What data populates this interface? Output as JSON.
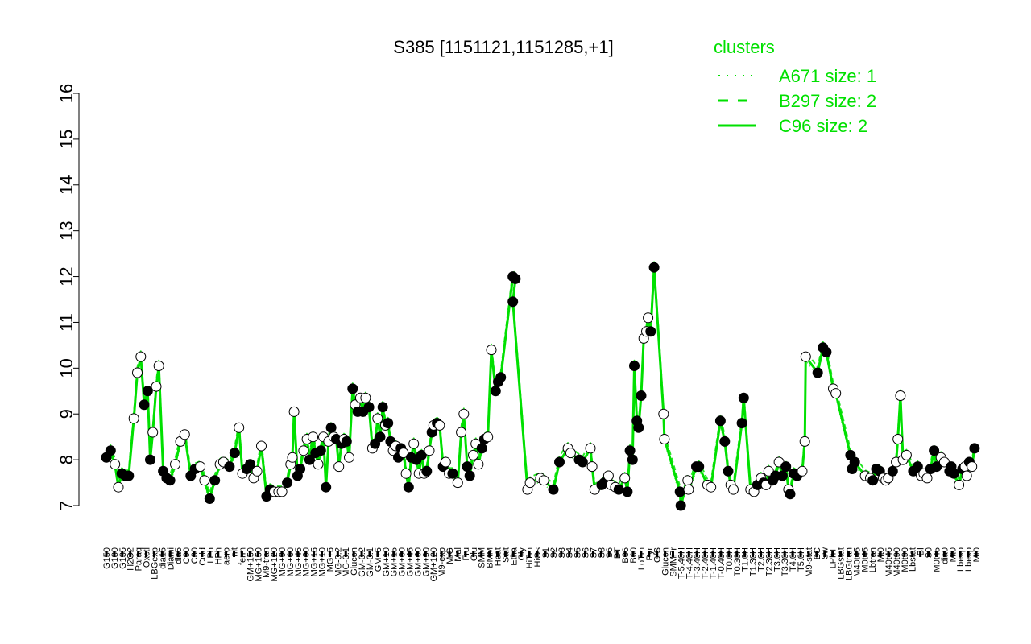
{
  "chart_data": {
    "type": "line",
    "title": "S385 [1151121,1151285,+1]",
    "xlabel": "",
    "ylabel": "",
    "ylim": [
      7,
      16
    ],
    "yticks": [
      7,
      8,
      9,
      10,
      11,
      12,
      13,
      14,
      15,
      16
    ],
    "legend": {
      "title": "clusters",
      "placement": "top-right",
      "entries": [
        {
          "label": "A671 size: 1",
          "style": "dotted"
        },
        {
          "label": "B297 size: 2",
          "style": "dashed"
        },
        {
          "label": "C96 size: 2",
          "style": "solid"
        }
      ]
    },
    "line_color": "#00e000",
    "point_fill_dark": "#000000",
    "point_fill_light": "#ffffff",
    "x_tick_labels": [
      "G150",
      "G180",
      "G135",
      "H2O2",
      "Paraq",
      "Oxctl",
      "LBGexp",
      "dia15",
      "Diami",
      "dia5",
      "C90",
      "C30",
      "Cold",
      "LPh",
      "HPh",
      "aero",
      "nit",
      "ferm",
      "GM+150",
      "MG+150",
      "M9-tran",
      "MG+120",
      "MG+90",
      "MG+60",
      "MG+45",
      "MG+30",
      "MG+15",
      "MG+10",
      "MG+5",
      "MG-0.2",
      "MG-0.1",
      "Glucon",
      "GM-0.2",
      "GM-0.1",
      "GM+5",
      "GM+10",
      "GM+15",
      "GM+30",
      "GM+45",
      "GM+60",
      "GM+90",
      "GM+120",
      "M9-exp",
      "M/G",
      "Mal",
      "Fru",
      "Glu",
      "SMM",
      "BMM",
      "Heat",
      "Salt",
      "Etha",
      "Gly",
      "HiTm",
      "HiOs",
      "S1",
      "S2",
      "S3",
      "S4",
      "S5",
      "S6",
      "S7",
      "S8",
      "S6",
      "BT",
      "B36",
      "B60",
      "LoTm",
      "Pyr",
      "G/S",
      "Glucon",
      "SMMPr",
      "T-5.40H",
      "T-4.40H",
      "T-3.40H",
      "T-2.40H",
      "T-1.40H",
      "T-0.40H",
      "T0.0H",
      "T0.30H",
      "T1.0H",
      "T1.30H",
      "T2.0H",
      "T2.30H",
      "T3.0H",
      "T3.30H",
      "T4.0H",
      "T5.0H",
      "M9-stat",
      "BC",
      "Sw",
      "LPhT",
      "LBGstat",
      "LBGtran",
      "M40t45",
      "M0t45",
      "Lbtran",
      "Mt0",
      "M40t45",
      "M40t90",
      "M0t90",
      "Lbstat",
      "BI",
      "S0",
      "M0t45",
      "dia0",
      "Mt0",
      "Lbexp",
      "Lbexp",
      "Mt0"
    ],
    "points": [
      {
        "x": 1,
        "y": 8.05,
        "f": 1
      },
      {
        "x": 1.5,
        "y": 8.2,
        "f": 1
      },
      {
        "x": 2,
        "y": 7.9,
        "f": 0
      },
      {
        "x": 2.4,
        "y": 7.4,
        "f": 0
      },
      {
        "x": 2.8,
        "y": 7.7,
        "f": 1
      },
      {
        "x": 3.2,
        "y": 7.65,
        "f": 1
      },
      {
        "x": 3.6,
        "y": 7.65,
        "f": 1
      },
      {
        "x": 4.2,
        "y": 8.9,
        "f": 0
      },
      {
        "x": 4.6,
        "y": 9.9,
        "f": 0
      },
      {
        "x": 5,
        "y": 10.25,
        "f": 0
      },
      {
        "x": 5.4,
        "y": 9.2,
        "f": 1
      },
      {
        "x": 5.8,
        "y": 9.5,
        "f": 1
      },
      {
        "x": 6.1,
        "y": 8.0,
        "f": 1
      },
      {
        "x": 6.4,
        "y": 8.6,
        "f": 0
      },
      {
        "x": 6.8,
        "y": 9.6,
        "f": 0
      },
      {
        "x": 7.1,
        "y": 10.05,
        "f": 0
      },
      {
        "x": 7.6,
        "y": 7.75,
        "f": 1
      },
      {
        "x": 8.0,
        "y": 7.6,
        "f": 1
      },
      {
        "x": 8.4,
        "y": 7.55,
        "f": 1
      },
      {
        "x": 9.0,
        "y": 7.9,
        "f": 0
      },
      {
        "x": 9.6,
        "y": 8.4,
        "f": 0
      },
      {
        "x": 10.1,
        "y": 8.55,
        "f": 0
      },
      {
        "x": 10.8,
        "y": 7.65,
        "f": 1
      },
      {
        "x": 11.3,
        "y": 7.8,
        "f": 1
      },
      {
        "x": 11.9,
        "y": 7.85,
        "f": 0
      },
      {
        "x": 12.4,
        "y": 7.55,
        "f": 0
      },
      {
        "x": 13.0,
        "y": 7.15,
        "f": 1
      },
      {
        "x": 13.6,
        "y": 7.55,
        "f": 1
      },
      {
        "x": 14.2,
        "y": 7.9,
        "f": 0
      },
      {
        "x": 14.6,
        "y": 7.95,
        "f": 0
      },
      {
        "x": 15.3,
        "y": 7.85,
        "f": 1
      },
      {
        "x": 15.9,
        "y": 8.15,
        "f": 1
      },
      {
        "x": 16.4,
        "y": 8.7,
        "f": 0
      },
      {
        "x": 16.8,
        "y": 7.7,
        "f": 0
      },
      {
        "x": 17.3,
        "y": 7.8,
        "f": 1
      },
      {
        "x": 17.7,
        "y": 7.9,
        "f": 1
      },
      {
        "x": 18.1,
        "y": 7.6,
        "f": 0
      },
      {
        "x": 18.5,
        "y": 7.75,
        "f": 0
      },
      {
        "x": 19.0,
        "y": 8.3,
        "f": 0
      },
      {
        "x": 19.6,
        "y": 7.2,
        "f": 1
      },
      {
        "x": 20.0,
        "y": 7.35,
        "f": 1
      },
      {
        "x": 20.5,
        "y": 7.3,
        "f": 0
      },
      {
        "x": 21.0,
        "y": 7.3,
        "f": 0
      },
      {
        "x": 21.4,
        "y": 7.3,
        "f": 0
      },
      {
        "x": 22.0,
        "y": 7.5,
        "f": 1
      },
      {
        "x": 22.4,
        "y": 7.9,
        "f": 0
      },
      {
        "x": 22.6,
        "y": 8.05,
        "f": 0
      },
      {
        "x": 22.8,
        "y": 9.05,
        "f": 0
      },
      {
        "x": 23.2,
        "y": 7.65,
        "f": 1
      },
      {
        "x": 23.5,
        "y": 7.8,
        "f": 1
      },
      {
        "x": 23.9,
        "y": 8.2,
        "f": 0
      },
      {
        "x": 24.3,
        "y": 8.45,
        "f": 0
      },
      {
        "x": 24.6,
        "y": 8.0,
        "f": 1
      },
      {
        "x": 25.0,
        "y": 8.5,
        "f": 0
      },
      {
        "x": 25.3,
        "y": 8.15,
        "f": 1
      },
      {
        "x": 25.6,
        "y": 7.9,
        "f": 0
      },
      {
        "x": 25.9,
        "y": 8.2,
        "f": 1
      },
      {
        "x": 26.2,
        "y": 8.5,
        "f": 0
      },
      {
        "x": 26.5,
        "y": 7.4,
        "f": 1
      },
      {
        "x": 26.8,
        "y": 8.4,
        "f": 0
      },
      {
        "x": 27.1,
        "y": 8.7,
        "f": 1
      },
      {
        "x": 27.4,
        "y": 8.5,
        "f": 0
      },
      {
        "x": 27.7,
        "y": 8.45,
        "f": 1
      },
      {
        "x": 28.0,
        "y": 7.85,
        "f": 0
      },
      {
        "x": 28.3,
        "y": 8.35,
        "f": 1
      },
      {
        "x": 28.6,
        "y": 8.45,
        "f": 0
      },
      {
        "x": 28.9,
        "y": 8.4,
        "f": 1
      },
      {
        "x": 29.2,
        "y": 8.05,
        "f": 0
      },
      {
        "x": 29.6,
        "y": 9.55,
        "f": 1
      },
      {
        "x": 29.9,
        "y": 9.2,
        "f": 0
      },
      {
        "x": 30.2,
        "y": 9.05,
        "f": 1
      },
      {
        "x": 30.5,
        "y": 9.35,
        "f": 0
      },
      {
        "x": 30.8,
        "y": 9.05,
        "f": 1
      },
      {
        "x": 31.1,
        "y": 9.35,
        "f": 0
      },
      {
        "x": 31.5,
        "y": 9.15,
        "f": 1
      },
      {
        "x": 31.9,
        "y": 8.25,
        "f": 0
      },
      {
        "x": 32.2,
        "y": 8.35,
        "f": 1
      },
      {
        "x": 32.5,
        "y": 8.9,
        "f": 0
      },
      {
        "x": 32.8,
        "y": 8.5,
        "f": 1
      },
      {
        "x": 33.1,
        "y": 9.15,
        "f": 1
      },
      {
        "x": 33.4,
        "y": 8.75,
        "f": 0
      },
      {
        "x": 33.7,
        "y": 8.8,
        "f": 1
      },
      {
        "x": 34.0,
        "y": 8.4,
        "f": 1
      },
      {
        "x": 34.3,
        "y": 8.2,
        "f": 0
      },
      {
        "x": 34.6,
        "y": 8.3,
        "f": 0
      },
      {
        "x": 34.9,
        "y": 8.05,
        "f": 1
      },
      {
        "x": 35.2,
        "y": 8.25,
        "f": 1
      },
      {
        "x": 35.5,
        "y": 8.15,
        "f": 0
      },
      {
        "x": 35.8,
        "y": 7.7,
        "f": 0
      },
      {
        "x": 36.1,
        "y": 7.4,
        "f": 1
      },
      {
        "x": 36.4,
        "y": 8.05,
        "f": 1
      },
      {
        "x": 36.7,
        "y": 8.35,
        "f": 0
      },
      {
        "x": 37.0,
        "y": 8.0,
        "f": 1
      },
      {
        "x": 37.3,
        "y": 7.7,
        "f": 0
      },
      {
        "x": 37.6,
        "y": 8.1,
        "f": 1
      },
      {
        "x": 37.9,
        "y": 7.7,
        "f": 0
      },
      {
        "x": 38.2,
        "y": 7.75,
        "f": 1
      },
      {
        "x": 38.5,
        "y": 8.2,
        "f": 0
      },
      {
        "x": 38.8,
        "y": 8.6,
        "f": 1
      },
      {
        "x": 39.0,
        "y": 8.75,
        "f": 0
      },
      {
        "x": 39.4,
        "y": 8.8,
        "f": 1
      },
      {
        "x": 39.7,
        "y": 8.75,
        "f": 0
      },
      {
        "x": 40.1,
        "y": 7.85,
        "f": 1
      },
      {
        "x": 40.4,
        "y": 7.95,
        "f": 0
      },
      {
        "x": 40.8,
        "y": 7.7,
        "f": 0
      },
      {
        "x": 41.2,
        "y": 7.7,
        "f": 1
      },
      {
        "x": 41.8,
        "y": 7.5,
        "f": 0
      },
      {
        "x": 42.2,
        "y": 8.6,
        "f": 0
      },
      {
        "x": 42.5,
        "y": 9.0,
        "f": 0
      },
      {
        "x": 42.9,
        "y": 7.85,
        "f": 1
      },
      {
        "x": 43.2,
        "y": 7.65,
        "f": 1
      },
      {
        "x": 43.6,
        "y": 8.1,
        "f": 0
      },
      {
        "x": 43.9,
        "y": 8.35,
        "f": 0
      },
      {
        "x": 44.2,
        "y": 7.9,
        "f": 0
      },
      {
        "x": 44.6,
        "y": 8.25,
        "f": 1
      },
      {
        "x": 44.9,
        "y": 8.45,
        "f": 1
      },
      {
        "x": 45.3,
        "y": 8.5,
        "f": 0
      },
      {
        "x": 45.7,
        "y": 10.4,
        "f": 0
      },
      {
        "x": 46.2,
        "y": 9.5,
        "f": 1
      },
      {
        "x": 46.5,
        "y": 9.7,
        "f": 1
      },
      {
        "x": 46.8,
        "y": 9.8,
        "f": 1
      },
      {
        "x": 48.2,
        "y": 12.0,
        "f": 1
      },
      {
        "x": 48.5,
        "y": 11.95,
        "f": 1
      },
      {
        "x": 48.2,
        "y": 11.45,
        "f": 1
      },
      {
        "x": 49.9,
        "y": 7.35,
        "f": 0
      },
      {
        "x": 50.2,
        "y": 7.5,
        "f": 0
      },
      {
        "x": 51.4,
        "y": 7.6,
        "f": 0
      },
      {
        "x": 51.8,
        "y": 7.55,
        "f": 0
      },
      {
        "x": 52.9,
        "y": 7.35,
        "f": 1
      },
      {
        "x": 53.6,
        "y": 7.95,
        "f": 1
      },
      {
        "x": 54.6,
        "y": 8.25,
        "f": 0
      },
      {
        "x": 54.9,
        "y": 8.15,
        "f": 0
      },
      {
        "x": 55.9,
        "y": 8.0,
        "f": 1
      },
      {
        "x": 56.3,
        "y": 7.95,
        "f": 1
      },
      {
        "x": 57.2,
        "y": 8.25,
        "f": 0
      },
      {
        "x": 57.4,
        "y": 7.85,
        "f": 0
      },
      {
        "x": 57.7,
        "y": 7.35,
        "f": 0
      },
      {
        "x": 58.5,
        "y": 7.45,
        "f": 1
      },
      {
        "x": 58.8,
        "y": 7.5,
        "f": 1
      },
      {
        "x": 59.3,
        "y": 7.65,
        "f": 0
      },
      {
        "x": 59.6,
        "y": 7.45,
        "f": 0
      },
      {
        "x": 60.1,
        "y": 7.4,
        "f": 0
      },
      {
        "x": 60.5,
        "y": 7.35,
        "f": 1
      },
      {
        "x": 61.2,
        "y": 7.6,
        "f": 0
      },
      {
        "x": 61.5,
        "y": 7.3,
        "f": 1
      },
      {
        "x": 61.8,
        "y": 8.2,
        "f": 1
      },
      {
        "x": 62.1,
        "y": 8.0,
        "f": 1
      },
      {
        "x": 62.3,
        "y": 10.05,
        "f": 1
      },
      {
        "x": 62.6,
        "y": 8.85,
        "f": 1
      },
      {
        "x": 62.8,
        "y": 8.7,
        "f": 1
      },
      {
        "x": 63.1,
        "y": 9.4,
        "f": 1
      },
      {
        "x": 63.4,
        "y": 10.65,
        "f": 0
      },
      {
        "x": 63.7,
        "y": 10.8,
        "f": 0
      },
      {
        "x": 63.9,
        "y": 11.1,
        "f": 0
      },
      {
        "x": 64.2,
        "y": 10.8,
        "f": 1
      },
      {
        "x": 64.6,
        "y": 12.2,
        "f": 1
      },
      {
        "x": 65.7,
        "y": 9.0,
        "f": 0
      },
      {
        "x": 65.8,
        "y": 8.45,
        "f": 0
      },
      {
        "x": 67.6,
        "y": 7.3,
        "f": 1
      },
      {
        "x": 67.7,
        "y": 7.0,
        "f": 1
      },
      {
        "x": 68.5,
        "y": 7.55,
        "f": 0
      },
      {
        "x": 68.6,
        "y": 7.35,
        "f": 0
      },
      {
        "x": 69.5,
        "y": 7.85,
        "f": 1
      },
      {
        "x": 69.8,
        "y": 7.85,
        "f": 1
      },
      {
        "x": 70.8,
        "y": 7.45,
        "f": 0
      },
      {
        "x": 71.2,
        "y": 7.4,
        "f": 0
      },
      {
        "x": 72.3,
        "y": 8.85,
        "f": 1
      },
      {
        "x": 72.8,
        "y": 8.4,
        "f": 1
      },
      {
        "x": 73.2,
        "y": 7.75,
        "f": 1
      },
      {
        "x": 73.5,
        "y": 7.45,
        "f": 0
      },
      {
        "x": 73.8,
        "y": 7.35,
        "f": 0
      },
      {
        "x": 74.8,
        "y": 8.8,
        "f": 1
      },
      {
        "x": 75.0,
        "y": 9.35,
        "f": 1
      },
      {
        "x": 75.8,
        "y": 7.35,
        "f": 0
      },
      {
        "x": 76.2,
        "y": 7.3,
        "f": 0
      },
      {
        "x": 76.6,
        "y": 7.45,
        "f": 1
      },
      {
        "x": 77.0,
        "y": 7.6,
        "f": 0
      },
      {
        "x": 77.3,
        "y": 7.5,
        "f": 1
      },
      {
        "x": 77.6,
        "y": 7.45,
        "f": 0
      },
      {
        "x": 77.9,
        "y": 7.75,
        "f": 0
      },
      {
        "x": 78.4,
        "y": 7.55,
        "f": 1
      },
      {
        "x": 78.7,
        "y": 7.65,
        "f": 1
      },
      {
        "x": 79.1,
        "y": 7.95,
        "f": 0
      },
      {
        "x": 79.5,
        "y": 7.65,
        "f": 1
      },
      {
        "x": 79.9,
        "y": 7.85,
        "f": 1
      },
      {
        "x": 80.2,
        "y": 7.35,
        "f": 0
      },
      {
        "x": 80.4,
        "y": 7.25,
        "f": 1
      },
      {
        "x": 80.8,
        "y": 7.7,
        "f": 1
      },
      {
        "x": 81.2,
        "y": 7.65,
        "f": 1
      },
      {
        "x": 81.8,
        "y": 7.75,
        "f": 0
      },
      {
        "x": 82.1,
        "y": 8.4,
        "f": 0
      },
      {
        "x": 82.2,
        "y": 10.25,
        "f": 0
      },
      {
        "x": 83.6,
        "y": 9.9,
        "f": 1
      },
      {
        "x": 84.2,
        "y": 10.45,
        "f": 1
      },
      {
        "x": 84.6,
        "y": 10.35,
        "f": 1
      },
      {
        "x": 85.4,
        "y": 9.55,
        "f": 0
      },
      {
        "x": 85.7,
        "y": 9.45,
        "f": 0
      },
      {
        "x": 87.4,
        "y": 8.1,
        "f": 1
      },
      {
        "x": 87.6,
        "y": 7.8,
        "f": 1
      },
      {
        "x": 87.9,
        "y": 7.95,
        "f": 1
      },
      {
        "x": 89.1,
        "y": 7.65,
        "f": 0
      },
      {
        "x": 89.7,
        "y": 7.6,
        "f": 0
      },
      {
        "x": 90.0,
        "y": 7.55,
        "f": 1
      },
      {
        "x": 90.4,
        "y": 7.8,
        "f": 1
      },
      {
        "x": 90.8,
        "y": 7.75,
        "f": 1
      },
      {
        "x": 91.2,
        "y": 7.6,
        "f": 0
      },
      {
        "x": 91.5,
        "y": 7.55,
        "f": 0
      },
      {
        "x": 91.8,
        "y": 7.6,
        "f": 0
      },
      {
        "x": 92.3,
        "y": 7.75,
        "f": 1
      },
      {
        "x": 92.7,
        "y": 7.95,
        "f": 0
      },
      {
        "x": 92.9,
        "y": 8.45,
        "f": 0
      },
      {
        "x": 93.2,
        "y": 9.4,
        "f": 0
      },
      {
        "x": 93.5,
        "y": 8.0,
        "f": 0
      },
      {
        "x": 93.9,
        "y": 8.1,
        "f": 0
      },
      {
        "x": 94.7,
        "y": 7.75,
        "f": 1
      },
      {
        "x": 95.2,
        "y": 7.85,
        "f": 1
      },
      {
        "x": 95.6,
        "y": 7.65,
        "f": 0
      },
      {
        "x": 95.9,
        "y": 7.7,
        "f": 0
      },
      {
        "x": 96.3,
        "y": 7.6,
        "f": 0
      },
      {
        "x": 96.7,
        "y": 7.8,
        "f": 1
      },
      {
        "x": 97.1,
        "y": 8.2,
        "f": 1
      },
      {
        "x": 97.4,
        "y": 7.85,
        "f": 1
      },
      {
        "x": 97.9,
        "y": 8.05,
        "f": 0
      },
      {
        "x": 98.3,
        "y": 7.95,
        "f": 0
      },
      {
        "x": 98.9,
        "y": 7.75,
        "f": 1
      },
      {
        "x": 99.1,
        "y": 7.85,
        "f": 1
      },
      {
        "x": 99.4,
        "y": 7.7,
        "f": 1
      },
      {
        "x": 100.0,
        "y": 7.45,
        "f": 0
      },
      {
        "x": 100.4,
        "y": 7.8,
        "f": 1
      },
      {
        "x": 100.7,
        "y": 7.85,
        "f": 0
      },
      {
        "x": 100.9,
        "y": 7.65,
        "f": 0
      },
      {
        "x": 101.2,
        "y": 7.95,
        "f": 1
      },
      {
        "x": 101.5,
        "y": 7.85,
        "f": 0
      },
      {
        "x": 101.8,
        "y": 8.25,
        "f": 1
      }
    ]
  }
}
